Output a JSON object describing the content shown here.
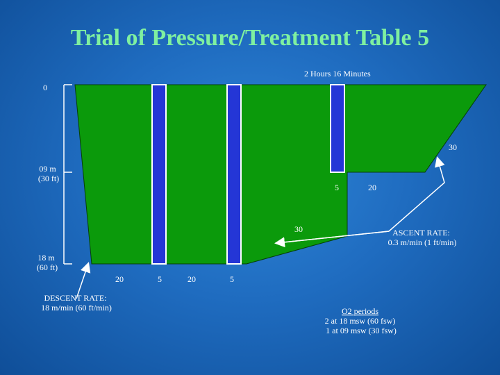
{
  "title": "Trial of Pressure/Treatment Table 5",
  "colors": {
    "profile_fill": "#0b9a0b",
    "o2_bar_fill": "#2436d6",
    "o2_bar_stroke": "#ffffff",
    "title_color": "#7ff0a0",
    "text_color": "#ffffff"
  },
  "total_time_label": "2 Hours 16 Minutes",
  "depth_labels": {
    "surface": "0",
    "depth_9m": [
      "09 m",
      "(30 ft)"
    ],
    "depth_18m": [
      "18 m",
      "(60 ft)"
    ]
  },
  "segment_times": {
    "ascent_to_9m": "30",
    "o2_at_9m": "5",
    "air_at_9m": "20",
    "ascent_to_surface": "30",
    "bottom_20_first": "20",
    "bottom_5_first": "5",
    "bottom_20_second": "20",
    "bottom_5_second": "5"
  },
  "descent_rate": [
    "DESCENT RATE:",
    "18 m/min (60 ft/min)"
  ],
  "ascent_rate": [
    "ASCENT RATE:",
    "0.3 m/min (1 ft/min)"
  ],
  "o2_periods": [
    "O2 periods",
    "2 at 18 msw (60 fsw)",
    "1 at 09 msw (30 fsw)"
  ]
}
